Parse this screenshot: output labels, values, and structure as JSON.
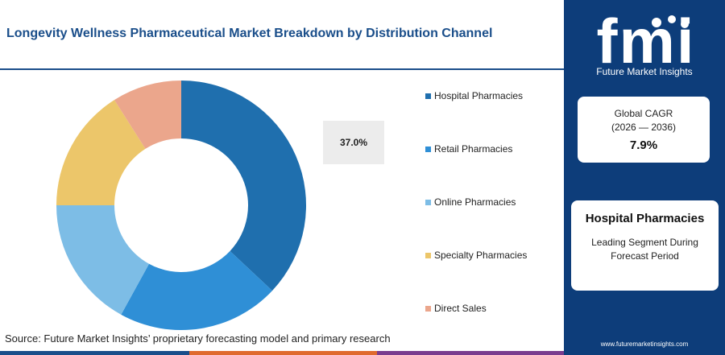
{
  "header": {
    "title": "Longevity Wellness Pharmaceutical Market Breakdown by Distribution Channel"
  },
  "chart_data": {
    "type": "pie",
    "donut": true,
    "title": "Longevity Wellness Pharmaceutical Market Breakdown by Distribution Channel",
    "categories": [
      "Hospital Pharmacies",
      "Retail Pharmacies",
      "Online Pharmacies",
      "Specialty Pharmacies",
      "Direct Sales"
    ],
    "values": [
      37.0,
      21.0,
      17.0,
      16.0,
      9.0
    ],
    "colors": [
      "#1f6fae",
      "#2f8fd6",
      "#7dbde6",
      "#ecc66a",
      "#eba68c"
    ],
    "highlight_label": "37.0%",
    "legend_position": "right"
  },
  "legend": {
    "items": [
      {
        "label": "Hospital Pharmacies",
        "color": "#1f6fae"
      },
      {
        "label": "Retail Pharmacies",
        "color": "#2f8fd6"
      },
      {
        "label": "Online Pharmacies",
        "color": "#7dbde6"
      },
      {
        "label": "Specialty Pharmacies",
        "color": "#ecc66a"
      },
      {
        "label": "Direct Sales",
        "color": "#eba68c"
      }
    ]
  },
  "source": "Source: Future Market Insights’ proprietary forecasting model and primary research",
  "brand": {
    "logo_text": "fmi",
    "name": "Future Market Insights",
    "website": "www.futuremarketinsights.com",
    "panel_color": "#0d3d7a"
  },
  "cagr": {
    "label": "Global CAGR",
    "period": "(2026 — 2036)",
    "value": "7.9%"
  },
  "segment": {
    "name": "Hospital Pharmacies",
    "caption": "Leading Segment During Forecast Period"
  },
  "bottom_bar_colors": [
    "#1a4e8a",
    "#e06a2e",
    "#7a3c8f"
  ]
}
